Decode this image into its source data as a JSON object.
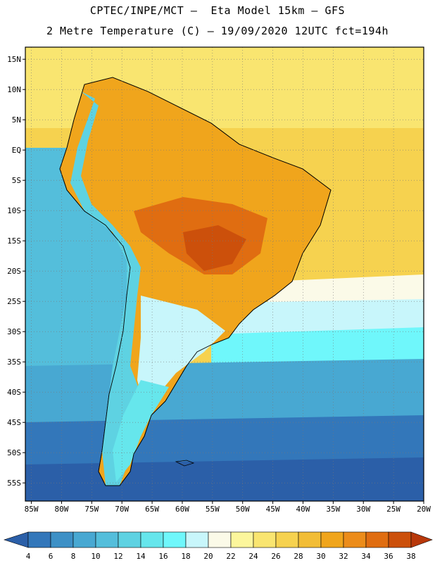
{
  "title": {
    "line1": "CPTEC/INPE/MCT –  Eta Model 15km – GFS",
    "line2": "2 Metre Temperature (C) – 19/09/2020 12UTC fct=194h"
  },
  "map": {
    "lon_range": [
      -86,
      -20
    ],
    "lat_range": [
      -58,
      17
    ],
    "lat_ticks": [
      {
        "value": 15,
        "label": "15N"
      },
      {
        "value": 10,
        "label": "10N"
      },
      {
        "value": 5,
        "label": "5N"
      },
      {
        "value": 0,
        "label": "EQ"
      },
      {
        "value": -5,
        "label": "5S"
      },
      {
        "value": -10,
        "label": "10S"
      },
      {
        "value": -15,
        "label": "15S"
      },
      {
        "value": -20,
        "label": "20S"
      },
      {
        "value": -25,
        "label": "25S"
      },
      {
        "value": -30,
        "label": "30S"
      },
      {
        "value": -35,
        "label": "35S"
      },
      {
        "value": -40,
        "label": "40S"
      },
      {
        "value": -45,
        "label": "45S"
      },
      {
        "value": -50,
        "label": "50S"
      },
      {
        "value": -55,
        "label": "55S"
      }
    ],
    "lon_ticks": [
      {
        "value": -85,
        "label": "85W"
      },
      {
        "value": -80,
        "label": "80W"
      },
      {
        "value": -75,
        "label": "75W"
      },
      {
        "value": -70,
        "label": "70W"
      },
      {
        "value": -65,
        "label": "65W"
      },
      {
        "value": -60,
        "label": "60W"
      },
      {
        "value": -55,
        "label": "55W"
      },
      {
        "value": -50,
        "label": "50W"
      },
      {
        "value": -45,
        "label": "45W"
      },
      {
        "value": -40,
        "label": "40W"
      },
      {
        "value": -35,
        "label": "35W"
      },
      {
        "value": -30,
        "label": "30W"
      },
      {
        "value": -25,
        "label": "25W"
      },
      {
        "value": -20,
        "label": "20W"
      }
    ]
  },
  "colorbar": {
    "labels": [
      "4",
      "6",
      "8",
      "10",
      "12",
      "14",
      "16",
      "18",
      "20",
      "22",
      "24",
      "26",
      "28",
      "30",
      "32",
      "34",
      "36",
      "38"
    ],
    "colors": [
      "#2b5fa8",
      "#3377ba",
      "#3d90c6",
      "#48a8d2",
      "#54bedb",
      "#5ed2e2",
      "#66e6ec",
      "#6ff7fb",
      "#c8f6fb",
      "#fbfae8",
      "#fcf69c",
      "#f9e570",
      "#f6d24f",
      "#f2bd36",
      "#f0a51c",
      "#ec8c1a",
      "#e06d11",
      "#cc500b",
      "#b8380a"
    ]
  }
}
